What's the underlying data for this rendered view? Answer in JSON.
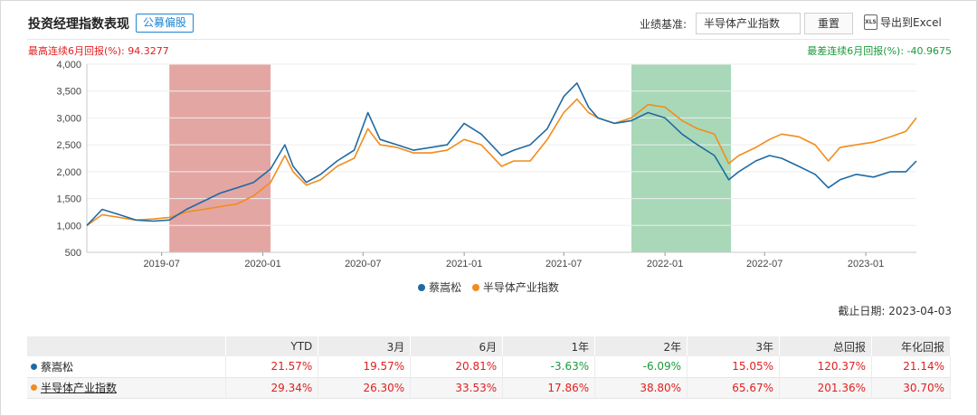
{
  "header": {
    "title": "投资经理指数表现",
    "tag": "公募偏股",
    "benchmark_label": "业绩基准:",
    "benchmark_value": "半导体产业指数",
    "reset_label": "重置",
    "export_icon_text": "XLS",
    "export_label": "导出到Excel"
  },
  "stats": {
    "max_6m": "最高连续6月回报(%):  94.3277",
    "min_6m": "最差连续6月回报(%):  -40.9675"
  },
  "colors": {
    "fund": "#1f6aa3",
    "index": "#f28c1c",
    "max_band": "#e3a6a3",
    "min_band": "#a8d8b8",
    "positive": "#e02020",
    "negative": "#1a9a3a"
  },
  "chart_data": {
    "type": "line",
    "yticks": [
      "4,000",
      "3,500",
      "3,000",
      "2,500",
      "2,000",
      "1,500",
      "1,000",
      "500"
    ],
    "ylim": [
      500,
      4000
    ],
    "xticks": [
      "2019-07",
      "2020-01",
      "2020-07",
      "2021-01",
      "2021-07",
      "2022-01",
      "2022-07",
      "2023-01"
    ],
    "x_range": [
      "2019-02-15",
      "2023-04-03"
    ],
    "bands": [
      {
        "name": "max",
        "from": "2019-07-15",
        "to": "2020-01-15"
      },
      {
        "name": "min",
        "from": "2021-11-01",
        "to": "2022-05-01"
      }
    ],
    "series": [
      {
        "name": "蔡嵩松",
        "x": [
          "2019-02-15",
          "2019-03-15",
          "2019-04-15",
          "2019-05-15",
          "2019-06-15",
          "2019-07-15",
          "2019-08-15",
          "2019-09-15",
          "2019-10-15",
          "2019-11-15",
          "2019-12-15",
          "2020-01-15",
          "2020-02-10",
          "2020-02-25",
          "2020-03-20",
          "2020-04-15",
          "2020-05-15",
          "2020-06-15",
          "2020-07-10",
          "2020-08-01",
          "2020-09-01",
          "2020-10-01",
          "2020-11-01",
          "2020-12-01",
          "2021-01-01",
          "2021-02-01",
          "2021-03-10",
          "2021-04-01",
          "2021-05-01",
          "2021-06-01",
          "2021-07-01",
          "2021-07-25",
          "2021-08-15",
          "2021-09-01",
          "2021-10-01",
          "2021-11-01",
          "2021-12-01",
          "2022-01-01",
          "2022-02-01",
          "2022-03-01",
          "2022-04-01",
          "2022-04-27",
          "2022-05-15",
          "2022-06-15",
          "2022-07-10",
          "2022-08-01",
          "2022-09-01",
          "2022-10-01",
          "2022-10-25",
          "2022-11-15",
          "2022-12-15",
          "2023-01-15",
          "2023-02-15",
          "2023-03-15",
          "2023-04-03"
        ],
        "y": [
          1000,
          1300,
          1200,
          1100,
          1080,
          1100,
          1300,
          1450,
          1600,
          1700,
          1800,
          2050,
          2500,
          2100,
          1800,
          1950,
          2200,
          2400,
          3100,
          2600,
          2500,
          2400,
          2450,
          2500,
          2900,
          2700,
          2300,
          2400,
          2500,
          2800,
          3400,
          3650,
          3200,
          3000,
          2900,
          2950,
          3100,
          3000,
          2700,
          2500,
          2300,
          1850,
          2000,
          2200,
          2300,
          2250,
          2100,
          1950,
          1700,
          1850,
          1950,
          1900,
          2000,
          2000,
          2200
        ]
      },
      {
        "name": "半导体产业指数",
        "x": [
          "2019-02-15",
          "2019-03-15",
          "2019-04-15",
          "2019-05-15",
          "2019-06-15",
          "2019-07-15",
          "2019-08-15",
          "2019-09-15",
          "2019-10-15",
          "2019-11-15",
          "2019-12-15",
          "2020-01-15",
          "2020-02-10",
          "2020-02-25",
          "2020-03-20",
          "2020-04-15",
          "2020-05-15",
          "2020-06-15",
          "2020-07-10",
          "2020-08-01",
          "2020-09-01",
          "2020-10-01",
          "2020-11-01",
          "2020-12-01",
          "2021-01-01",
          "2021-02-01",
          "2021-03-10",
          "2021-04-01",
          "2021-05-01",
          "2021-06-01",
          "2021-07-01",
          "2021-07-25",
          "2021-08-15",
          "2021-09-01",
          "2021-10-01",
          "2021-11-01",
          "2021-12-01",
          "2022-01-01",
          "2022-02-01",
          "2022-03-01",
          "2022-04-01",
          "2022-04-27",
          "2022-05-15",
          "2022-06-15",
          "2022-07-10",
          "2022-08-01",
          "2022-09-01",
          "2022-10-01",
          "2022-10-25",
          "2022-11-15",
          "2022-12-15",
          "2023-01-15",
          "2023-02-15",
          "2023-03-15",
          "2023-04-03"
        ],
        "y": [
          1000,
          1200,
          1150,
          1100,
          1120,
          1150,
          1250,
          1300,
          1350,
          1400,
          1550,
          1800,
          2300,
          2000,
          1750,
          1850,
          2100,
          2250,
          2800,
          2500,
          2450,
          2350,
          2350,
          2400,
          2600,
          2500,
          2100,
          2200,
          2200,
          2600,
          3100,
          3350,
          3100,
          3000,
          2900,
          3000,
          3250,
          3200,
          2950,
          2800,
          2700,
          2150,
          2300,
          2450,
          2600,
          2700,
          2650,
          2500,
          2200,
          2450,
          2500,
          2550,
          2650,
          2750,
          3000
        ]
      }
    ]
  },
  "as_of": "截止日期:  2023-04-03",
  "table": {
    "headers": [
      "",
      "YTD",
      "3月",
      "6月",
      "1年",
      "2年",
      "3年",
      "总回报",
      "年化回报"
    ],
    "rows": [
      {
        "name": "蔡嵩松",
        "values": [
          "21.57%",
          "19.57%",
          "20.81%",
          "-3.63%",
          "-6.09%",
          "15.05%",
          "120.37%",
          "21.14%"
        ]
      },
      {
        "name": "半导体产业指数",
        "values": [
          "29.34%",
          "26.30%",
          "33.53%",
          "17.86%",
          "38.80%",
          "65.67%",
          "201.36%",
          "30.70%"
        ]
      }
    ]
  }
}
